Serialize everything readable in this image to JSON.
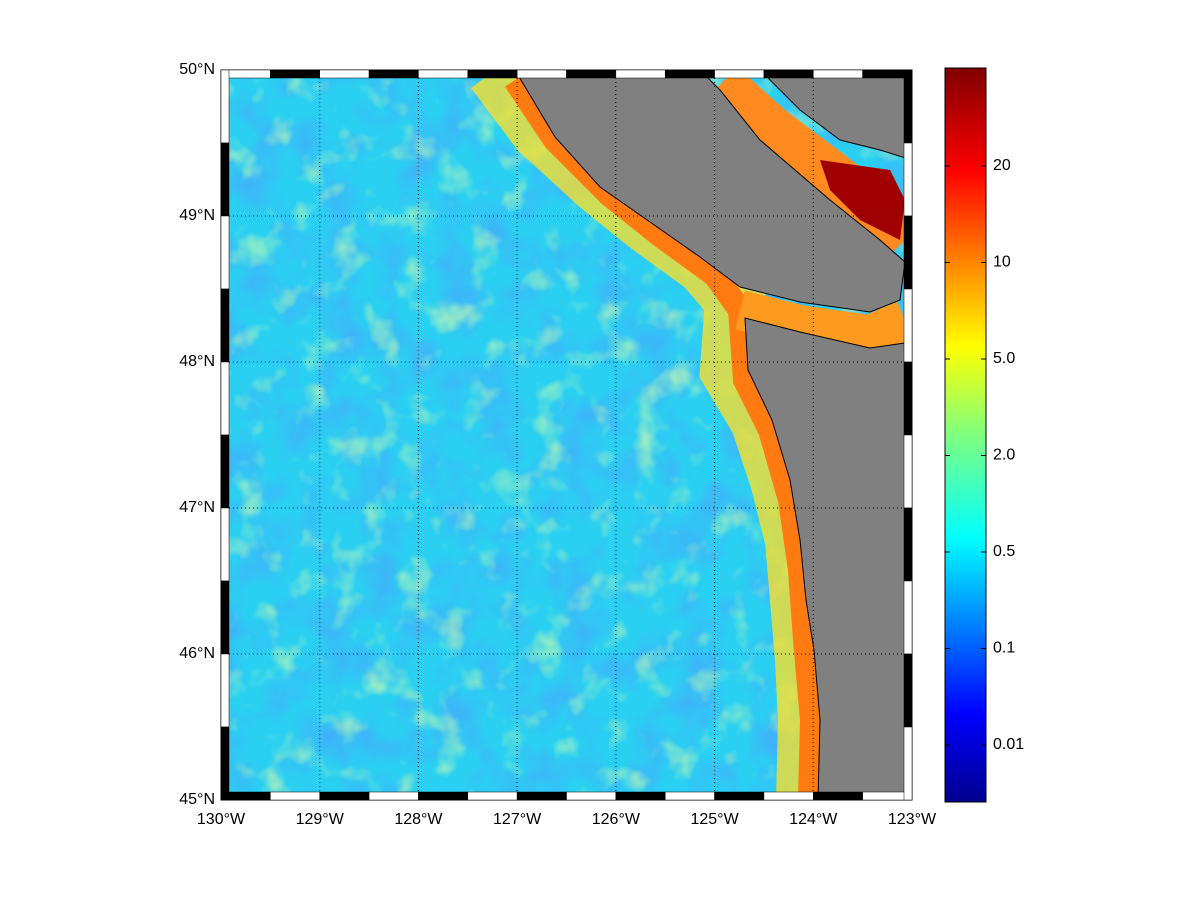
{
  "map": {
    "xlim": [
      -130,
      -123
    ],
    "ylim": [
      45,
      50
    ],
    "xticks": [
      {
        "value": -130,
        "label": "130°W"
      },
      {
        "value": -129,
        "label": "129°W"
      },
      {
        "value": -128,
        "label": "128°W"
      },
      {
        "value": -127,
        "label": "127°W"
      },
      {
        "value": -126,
        "label": "126°W"
      },
      {
        "value": -125,
        "label": "125°W"
      },
      {
        "value": -124,
        "label": "124°W"
      },
      {
        "value": -123,
        "label": "123°W"
      }
    ],
    "yticks": [
      {
        "value": 45,
        "label": "45°N"
      },
      {
        "value": 46,
        "label": "46°N"
      },
      {
        "value": 47,
        "label": "47°N"
      },
      {
        "value": 48,
        "label": "48°N"
      },
      {
        "value": 49,
        "label": "49°N"
      },
      {
        "value": 50,
        "label": "50°N"
      }
    ],
    "grid": true,
    "colorbar": {
      "ticks": [
        0.01,
        0.1,
        0.5,
        {
          "value": 2,
          "label": "2.0"
        },
        {
          "value": 5,
          "label": "5.0"
        },
        10,
        20
      ]
    }
  }
}
